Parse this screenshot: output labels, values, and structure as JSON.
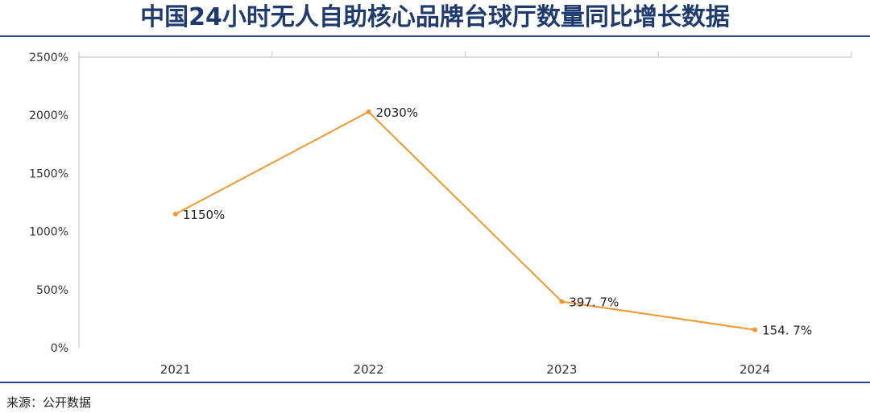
{
  "title": "中国24小时无人自助核心品牌台球厅数量同比增长数据",
  "source": "来源：公开数据",
  "chart_data": {
    "type": "line",
    "categories": [
      "2021",
      "2022",
      "2023",
      "2024"
    ],
    "series": [
      {
        "values": [
          1150,
          2030,
          397.7,
          154.7
        ],
        "labels": [
          "1150%",
          "2030%",
          "397. 7%",
          "154. 7%"
        ]
      }
    ],
    "ylim": [
      0,
      2500
    ],
    "yticks": [
      0,
      500,
      1000,
      1500,
      2000,
      2500
    ],
    "ytick_labels": [
      "0%",
      "500%",
      "1000%",
      "1500%",
      "2000%",
      "2500%"
    ],
    "grid": false,
    "colors": {
      "line": "#f0982f",
      "axis": "#c8c8c8",
      "title": "#1f3a6e",
      "rule": "#2b4a84"
    }
  }
}
